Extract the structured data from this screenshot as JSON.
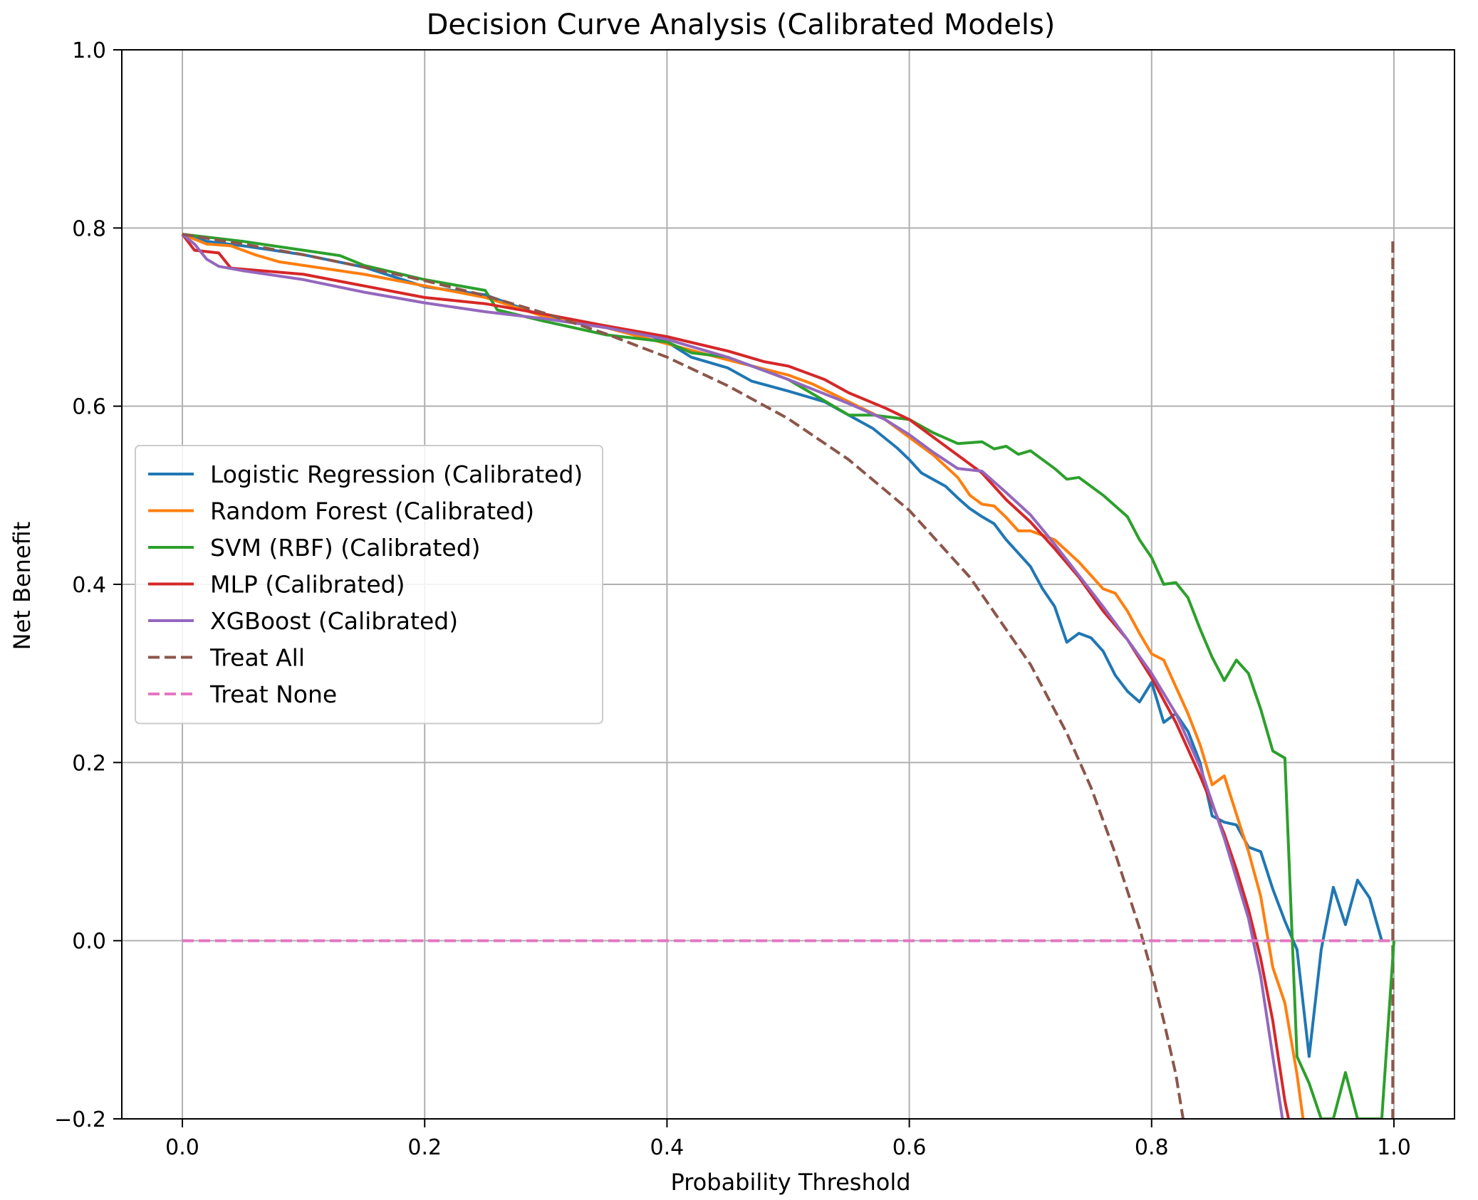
{
  "chart_data": {
    "type": "line",
    "title": "Decision Curve Analysis (Calibrated Models)",
    "xlabel": "Probability Threshold",
    "ylabel": "Net Benefit",
    "xlim": [
      -0.05,
      1.05
    ],
    "ylim": [
      -0.2,
      1.0
    ],
    "xticks": [
      "0.0",
      "0.2",
      "0.4",
      "0.6",
      "0.8",
      "1.0"
    ],
    "yticks": [
      "1.0",
      "0.8",
      "0.6",
      "0.4",
      "0.2",
      "0.0",
      "−0.2"
    ],
    "grid": true,
    "legend_position": "center-left",
    "series": [
      {
        "name": "Logistic Regression (Calibrated)",
        "color": "#1f77b4",
        "style": "solid",
        "points": [
          [
            0.0,
            0.793
          ],
          [
            0.02,
            0.785
          ],
          [
            0.05,
            0.78
          ],
          [
            0.1,
            0.77
          ],
          [
            0.15,
            0.756
          ],
          [
            0.2,
            0.734
          ],
          [
            0.25,
            0.725
          ],
          [
            0.3,
            0.7
          ],
          [
            0.35,
            0.69
          ],
          [
            0.38,
            0.682
          ],
          [
            0.4,
            0.672
          ],
          [
            0.42,
            0.655
          ],
          [
            0.45,
            0.643
          ],
          [
            0.47,
            0.628
          ],
          [
            0.5,
            0.617
          ],
          [
            0.53,
            0.605
          ],
          [
            0.55,
            0.59
          ],
          [
            0.57,
            0.575
          ],
          [
            0.59,
            0.553
          ],
          [
            0.6,
            0.54
          ],
          [
            0.61,
            0.525
          ],
          [
            0.63,
            0.51
          ],
          [
            0.64,
            0.497
          ],
          [
            0.65,
            0.485
          ],
          [
            0.66,
            0.476
          ],
          [
            0.67,
            0.468
          ],
          [
            0.68,
            0.45
          ],
          [
            0.69,
            0.435
          ],
          [
            0.7,
            0.42
          ],
          [
            0.71,
            0.395
          ],
          [
            0.72,
            0.375
          ],
          [
            0.73,
            0.335
          ],
          [
            0.74,
            0.345
          ],
          [
            0.75,
            0.34
          ],
          [
            0.76,
            0.325
          ],
          [
            0.77,
            0.298
          ],
          [
            0.78,
            0.28
          ],
          [
            0.79,
            0.268
          ],
          [
            0.8,
            0.29
          ],
          [
            0.81,
            0.245
          ],
          [
            0.82,
            0.255
          ],
          [
            0.83,
            0.235
          ],
          [
            0.84,
            0.2
          ],
          [
            0.85,
            0.14
          ],
          [
            0.86,
            0.133
          ],
          [
            0.87,
            0.13
          ],
          [
            0.88,
            0.105
          ],
          [
            0.89,
            0.1
          ],
          [
            0.9,
            0.058
          ],
          [
            0.91,
            0.022
          ],
          [
            0.92,
            -0.01
          ],
          [
            0.93,
            -0.13
          ],
          [
            0.94,
            -0.01
          ],
          [
            0.95,
            0.06
          ],
          [
            0.96,
            0.018
          ],
          [
            0.97,
            0.068
          ],
          [
            0.98,
            0.048
          ],
          [
            0.99,
            0.0
          ]
        ]
      },
      {
        "name": "Random Forest (Calibrated)",
        "color": "#ff7f0e",
        "style": "solid",
        "points": [
          [
            0.0,
            0.793
          ],
          [
            0.02,
            0.782
          ],
          [
            0.04,
            0.78
          ],
          [
            0.06,
            0.77
          ],
          [
            0.08,
            0.762
          ],
          [
            0.1,
            0.758
          ],
          [
            0.15,
            0.748
          ],
          [
            0.2,
            0.735
          ],
          [
            0.25,
            0.722
          ],
          [
            0.3,
            0.7
          ],
          [
            0.35,
            0.688
          ],
          [
            0.4,
            0.67
          ],
          [
            0.45,
            0.652
          ],
          [
            0.5,
            0.635
          ],
          [
            0.52,
            0.625
          ],
          [
            0.55,
            0.605
          ],
          [
            0.58,
            0.585
          ],
          [
            0.6,
            0.565
          ],
          [
            0.62,
            0.545
          ],
          [
            0.64,
            0.52
          ],
          [
            0.65,
            0.5
          ],
          [
            0.66,
            0.49
          ],
          [
            0.67,
            0.488
          ],
          [
            0.68,
            0.475
          ],
          [
            0.69,
            0.46
          ],
          [
            0.7,
            0.46
          ],
          [
            0.72,
            0.45
          ],
          [
            0.74,
            0.425
          ],
          [
            0.76,
            0.395
          ],
          [
            0.77,
            0.39
          ],
          [
            0.78,
            0.37
          ],
          [
            0.79,
            0.345
          ],
          [
            0.8,
            0.322
          ],
          [
            0.81,
            0.315
          ],
          [
            0.82,
            0.285
          ],
          [
            0.83,
            0.255
          ],
          [
            0.84,
            0.22
          ],
          [
            0.85,
            0.175
          ],
          [
            0.86,
            0.185
          ],
          [
            0.87,
            0.142
          ],
          [
            0.88,
            0.1
          ],
          [
            0.89,
            0.05
          ],
          [
            0.9,
            -0.03
          ],
          [
            0.91,
            -0.07
          ],
          [
            0.92,
            -0.15
          ],
          [
            0.925,
            -0.2
          ]
        ]
      },
      {
        "name": "SVM (RBF) (Calibrated)",
        "color": "#2ca02c",
        "style": "solid",
        "points": [
          [
            0.0,
            0.793
          ],
          [
            0.05,
            0.785
          ],
          [
            0.1,
            0.775
          ],
          [
            0.13,
            0.769
          ],
          [
            0.15,
            0.758
          ],
          [
            0.2,
            0.742
          ],
          [
            0.25,
            0.73
          ],
          [
            0.26,
            0.708
          ],
          [
            0.3,
            0.695
          ],
          [
            0.35,
            0.68
          ],
          [
            0.4,
            0.672
          ],
          [
            0.42,
            0.66
          ],
          [
            0.45,
            0.655
          ],
          [
            0.5,
            0.63
          ],
          [
            0.55,
            0.59
          ],
          [
            0.57,
            0.59
          ],
          [
            0.6,
            0.585
          ],
          [
            0.62,
            0.57
          ],
          [
            0.64,
            0.558
          ],
          [
            0.66,
            0.56
          ],
          [
            0.67,
            0.552
          ],
          [
            0.68,
            0.555
          ],
          [
            0.69,
            0.546
          ],
          [
            0.7,
            0.55
          ],
          [
            0.72,
            0.53
          ],
          [
            0.73,
            0.518
          ],
          [
            0.74,
            0.52
          ],
          [
            0.76,
            0.5
          ],
          [
            0.78,
            0.476
          ],
          [
            0.79,
            0.45
          ],
          [
            0.8,
            0.43
          ],
          [
            0.81,
            0.4
          ],
          [
            0.82,
            0.402
          ],
          [
            0.83,
            0.385
          ],
          [
            0.84,
            0.35
          ],
          [
            0.85,
            0.318
          ],
          [
            0.86,
            0.292
          ],
          [
            0.87,
            0.315
          ],
          [
            0.88,
            0.3
          ],
          [
            0.89,
            0.26
          ],
          [
            0.9,
            0.213
          ],
          [
            0.91,
            0.205
          ],
          [
            0.92,
            -0.13
          ],
          [
            0.93,
            -0.16
          ],
          [
            0.94,
            -0.2
          ],
          [
            0.95,
            -0.2
          ],
          [
            0.96,
            -0.148
          ],
          [
            0.97,
            -0.2
          ],
          [
            0.99,
            -0.2
          ],
          [
            1.0,
            0.0
          ]
        ]
      },
      {
        "name": "MLP (Calibrated)",
        "color": "#d62728",
        "style": "solid",
        "points": [
          [
            0.0,
            0.793
          ],
          [
            0.01,
            0.775
          ],
          [
            0.03,
            0.772
          ],
          [
            0.04,
            0.755
          ],
          [
            0.1,
            0.748
          ],
          [
            0.15,
            0.735
          ],
          [
            0.2,
            0.722
          ],
          [
            0.25,
            0.715
          ],
          [
            0.3,
            0.703
          ],
          [
            0.35,
            0.69
          ],
          [
            0.4,
            0.678
          ],
          [
            0.45,
            0.662
          ],
          [
            0.48,
            0.65
          ],
          [
            0.5,
            0.645
          ],
          [
            0.53,
            0.63
          ],
          [
            0.55,
            0.615
          ],
          [
            0.58,
            0.598
          ],
          [
            0.6,
            0.585
          ],
          [
            0.62,
            0.565
          ],
          [
            0.64,
            0.545
          ],
          [
            0.66,
            0.525
          ],
          [
            0.68,
            0.495
          ],
          [
            0.7,
            0.47
          ],
          [
            0.72,
            0.44
          ],
          [
            0.74,
            0.408
          ],
          [
            0.76,
            0.37
          ],
          [
            0.78,
            0.338
          ],
          [
            0.8,
            0.295
          ],
          [
            0.82,
            0.245
          ],
          [
            0.84,
            0.185
          ],
          [
            0.86,
            0.12
          ],
          [
            0.87,
            0.08
          ],
          [
            0.88,
            0.035
          ],
          [
            0.89,
            -0.02
          ],
          [
            0.9,
            -0.09
          ],
          [
            0.91,
            -0.18
          ],
          [
            0.913,
            -0.2
          ]
        ]
      },
      {
        "name": "XGBoost (Calibrated)",
        "color": "#9467bd",
        "style": "solid",
        "points": [
          [
            0.0,
            0.793
          ],
          [
            0.01,
            0.782
          ],
          [
            0.02,
            0.765
          ],
          [
            0.03,
            0.757
          ],
          [
            0.05,
            0.752
          ],
          [
            0.1,
            0.742
          ],
          [
            0.15,
            0.728
          ],
          [
            0.2,
            0.716
          ],
          [
            0.25,
            0.706
          ],
          [
            0.3,
            0.698
          ],
          [
            0.35,
            0.688
          ],
          [
            0.4,
            0.675
          ],
          [
            0.45,
            0.655
          ],
          [
            0.5,
            0.63
          ],
          [
            0.55,
            0.603
          ],
          [
            0.58,
            0.585
          ],
          [
            0.6,
            0.568
          ],
          [
            0.62,
            0.548
          ],
          [
            0.64,
            0.53
          ],
          [
            0.66,
            0.527
          ],
          [
            0.68,
            0.503
          ],
          [
            0.7,
            0.478
          ],
          [
            0.72,
            0.445
          ],
          [
            0.74,
            0.41
          ],
          [
            0.76,
            0.375
          ],
          [
            0.78,
            0.338
          ],
          [
            0.8,
            0.3
          ],
          [
            0.82,
            0.255
          ],
          [
            0.84,
            0.195
          ],
          [
            0.86,
            0.115
          ],
          [
            0.88,
            0.025
          ],
          [
            0.89,
            -0.04
          ],
          [
            0.9,
            -0.13
          ],
          [
            0.908,
            -0.2
          ]
        ]
      },
      {
        "name": "Treat All",
        "color": "#8c564b",
        "style": "dashed",
        "points": [
          [
            0.0,
            0.793
          ],
          [
            0.05,
            0.782
          ],
          [
            0.1,
            0.77
          ],
          [
            0.15,
            0.756
          ],
          [
            0.2,
            0.741
          ],
          [
            0.25,
            0.724
          ],
          [
            0.3,
            0.704
          ],
          [
            0.35,
            0.681
          ],
          [
            0.4,
            0.655
          ],
          [
            0.45,
            0.623
          ],
          [
            0.5,
            0.586
          ],
          [
            0.55,
            0.54
          ],
          [
            0.6,
            0.483
          ],
          [
            0.65,
            0.408
          ],
          [
            0.7,
            0.31
          ],
          [
            0.73,
            0.233
          ],
          [
            0.75,
            0.172
          ],
          [
            0.77,
            0.098
          ],
          [
            0.79,
            0.014
          ],
          [
            0.8,
            -0.035
          ],
          [
            0.81,
            -0.09
          ],
          [
            0.82,
            -0.15
          ],
          [
            0.826,
            -0.2
          ]
        ]
      },
      {
        "name": "Treat None",
        "color": "#e377c2",
        "style": "dashed",
        "points": [
          [
            0.0,
            0.0
          ],
          [
            1.0,
            0.0
          ]
        ]
      }
    ],
    "extra_lines": [
      {
        "color": "#8c564b",
        "style": "dashed",
        "points": [
          [
            0.999,
            0.785
          ],
          [
            0.999,
            -0.2
          ]
        ]
      }
    ]
  }
}
